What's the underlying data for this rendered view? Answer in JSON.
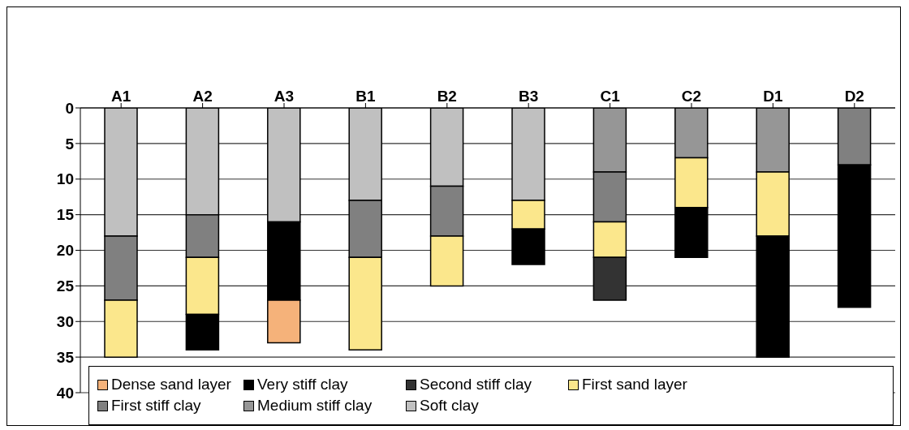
{
  "chart_data": {
    "type": "bar",
    "stacked": true,
    "categories": [
      "A1",
      "A2",
      "A3",
      "B1",
      "B2",
      "B3",
      "C1",
      "C2",
      "D1",
      "D2"
    ],
    "ylim": [
      40,
      0
    ],
    "yticks": [
      0,
      5,
      10,
      15,
      20,
      25,
      30,
      35,
      40
    ],
    "grid": "y",
    "legend": "bottom",
    "series": [
      {
        "name": "Soft clay",
        "color": "#c0c0c0",
        "values": [
          18,
          15,
          16,
          13,
          11,
          13,
          null,
          null,
          null,
          null
        ]
      },
      {
        "name": "Medium stiff clay",
        "color": "#969696",
        "values": [
          null,
          null,
          null,
          null,
          null,
          null,
          9,
          7,
          9,
          null
        ]
      },
      {
        "name": "First stiff clay",
        "color": "#808080",
        "values": [
          9,
          6,
          null,
          8,
          7,
          null,
          7,
          null,
          null,
          8
        ]
      },
      {
        "name": "First sand layer",
        "color": "#fbe78c",
        "values": [
          8,
          8,
          null,
          13,
          7,
          4,
          5,
          7,
          9,
          null
        ]
      },
      {
        "name": "Second stiff clay",
        "color": "#333333",
        "values": [
          null,
          null,
          null,
          null,
          null,
          null,
          6,
          null,
          null,
          null
        ]
      },
      {
        "name": "Very stiff clay",
        "color": "#000000",
        "values": [
          null,
          5,
          11,
          null,
          null,
          5,
          null,
          7,
          17,
          20
        ]
      },
      {
        "name": "Dense sand layer",
        "color": "#f5b27a",
        "values": [
          null,
          null,
          6,
          null,
          null,
          null,
          null,
          null,
          null,
          null
        ]
      }
    ]
  }
}
